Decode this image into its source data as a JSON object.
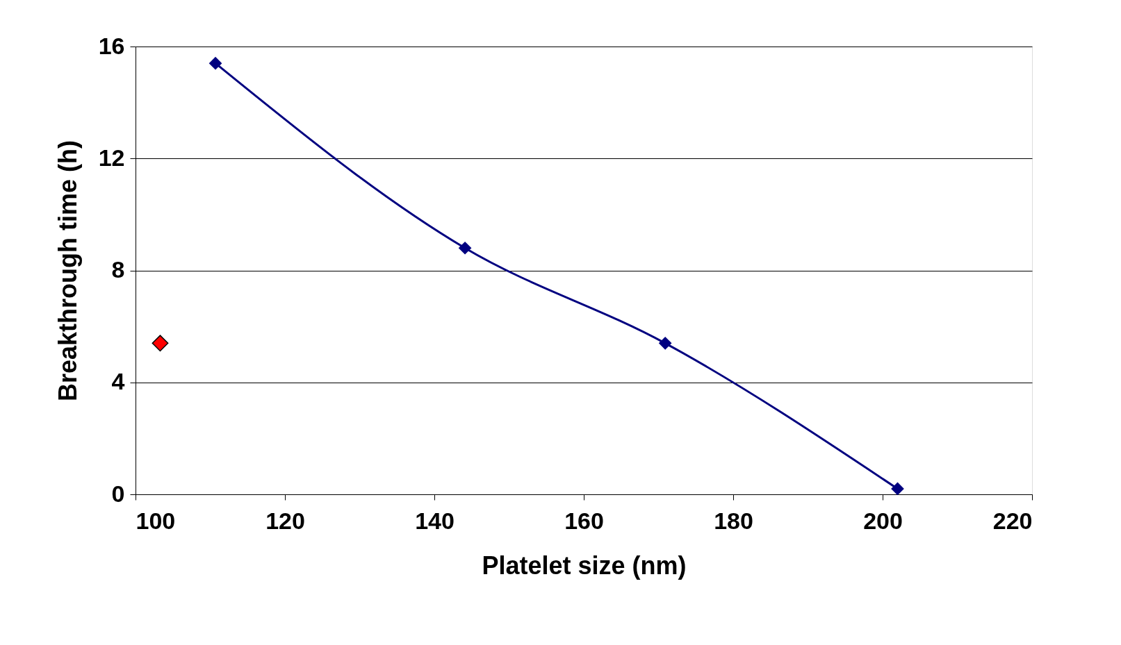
{
  "chart_data": {
    "type": "line",
    "xlabel": "Platelet size (nm)",
    "ylabel": "Breakthrough time (h)",
    "xlim": [
      100,
      220
    ],
    "xticks": [
      100,
      120,
      140,
      160,
      180,
      200,
      220
    ],
    "ylim": [
      0,
      16
    ],
    "yticks": [
      0,
      4,
      8,
      12,
      16
    ],
    "grid": "y",
    "marker": "diamond",
    "line_style": "solid",
    "series": [
      {
        "color": "#000080",
        "x": [
          110.7,
          144.1,
          170.9,
          202
        ],
        "values": [
          15.4,
          8.8,
          5.4,
          0.2
        ]
      },
      {
        "type": "scatter",
        "color": "#ff0000",
        "x": [
          103.3
        ],
        "values": [
          5.4
        ]
      }
    ]
  }
}
